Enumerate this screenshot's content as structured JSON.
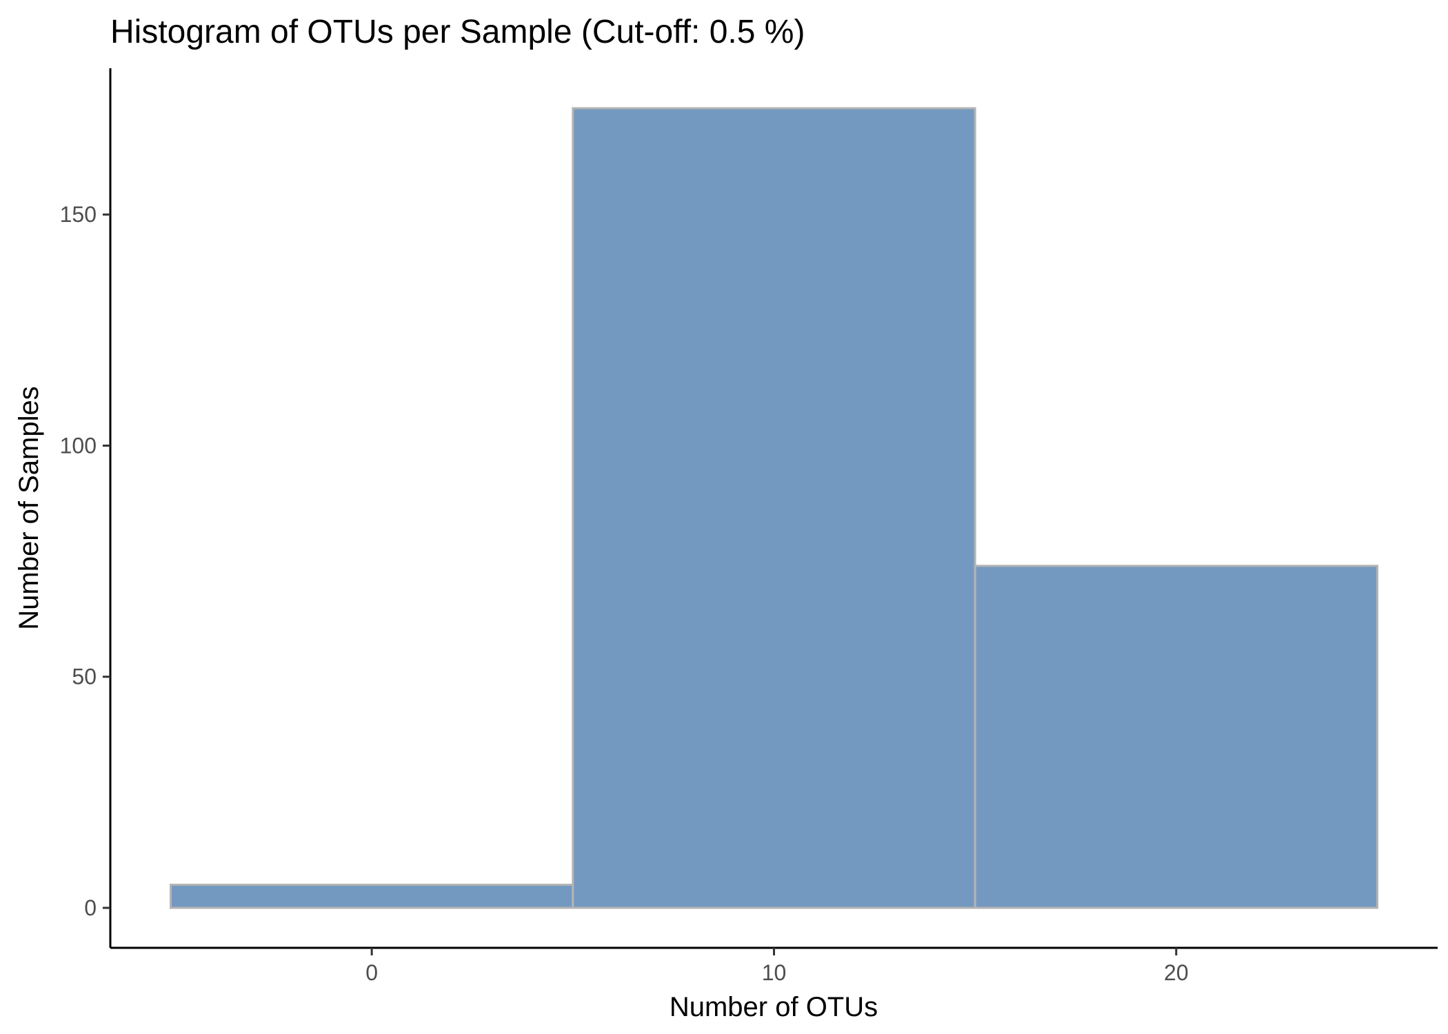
{
  "chart_data": {
    "type": "bar",
    "title": "Histogram of OTUs per Sample (Cut-off: 0.5 %)",
    "xlabel": "Number of OTUs",
    "ylabel": "Number of Samples",
    "bins": [
      {
        "x_start": -5,
        "x_end": 5,
        "count": 5
      },
      {
        "x_start": 5,
        "x_end": 15,
        "count": 173
      },
      {
        "x_start": 15,
        "x_end": 25,
        "count": 74
      }
    ],
    "x_ticks": [
      0,
      10,
      20
    ],
    "y_ticks": [
      0,
      50,
      100,
      150
    ],
    "xlim": [
      -6.5,
      26.5
    ],
    "ylim": [
      -8.65,
      181.65
    ],
    "grid": false,
    "legend": "none",
    "colors": {
      "fill": "#7499c1",
      "border": "#b4b4b4"
    }
  }
}
